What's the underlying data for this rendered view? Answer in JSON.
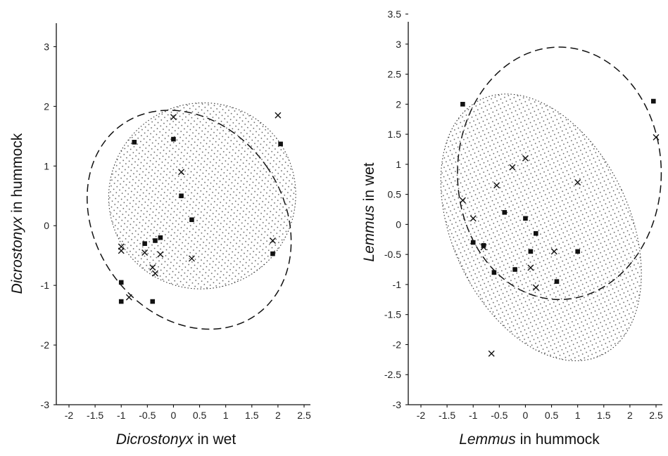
{
  "chart_data": [
    {
      "type": "scatter",
      "title": "",
      "xlabel": {
        "species": "Dicrostonyx",
        "rest": " in wet"
      },
      "ylabel": {
        "species": "Dicrostonyx",
        "rest": " in hummock"
      },
      "xlim": [
        -2,
        2.5
      ],
      "ylim": [
        -3,
        3.5
      ],
      "x_ticks": [
        "-2",
        "-1.5",
        "-1",
        "-0.5",
        "0",
        "0.5",
        "1",
        "1.5",
        "2",
        "2.5"
      ],
      "y_ticks": [
        "-3",
        "-2",
        "-1",
        "0",
        "1",
        "2",
        "3"
      ],
      "grid": false,
      "series": [
        {
          "marker": "square",
          "points": [
            [
              -0.75,
              1.4
            ],
            [
              0.0,
              1.45
            ],
            [
              2.05,
              1.37
            ],
            [
              0.15,
              0.5
            ],
            [
              0.35,
              0.1
            ],
            [
              -0.25,
              -0.2
            ],
            [
              -0.35,
              -0.25
            ],
            [
              -0.55,
              -0.3
            ],
            [
              -1.0,
              -0.95
            ],
            [
              -1.0,
              -1.27
            ],
            [
              -0.4,
              -1.27
            ],
            [
              1.9,
              -0.47
            ]
          ]
        },
        {
          "marker": "cross",
          "points": [
            [
              0.0,
              1.82
            ],
            [
              2.0,
              1.85
            ],
            [
              0.15,
              0.9
            ],
            [
              -1.0,
              -0.35
            ],
            [
              -1.0,
              -0.42
            ],
            [
              -0.55,
              -0.45
            ],
            [
              -0.25,
              -0.48
            ],
            [
              -0.4,
              -0.7
            ],
            [
              -0.35,
              -0.8
            ],
            [
              0.35,
              -0.55
            ],
            [
              -0.85,
              -1.2
            ],
            [
              1.9,
              -0.25
            ]
          ]
        }
      ],
      "ellipses": [
        {
          "style": "dashed",
          "center": [
            0.3,
            0.1
          ],
          "rx": 1.8,
          "ry": 1.95,
          "rotation_deg": -35
        },
        {
          "style": "dotted-shaded",
          "center": [
            0.55,
            0.5
          ],
          "rx": 1.8,
          "ry": 1.55,
          "rotation_deg": -38
        }
      ]
    },
    {
      "type": "scatter",
      "title": "",
      "xlabel": {
        "species": "Lemmus",
        "rest": " in hummock"
      },
      "ylabel": {
        "species": "Lemmus",
        "rest": " in wet"
      },
      "xlim": [
        -2,
        2.5
      ],
      "ylim": [
        -3,
        3.5
      ],
      "x_ticks": [
        "-2",
        "-1.5",
        "-1",
        "-0.5",
        "0",
        "0.5",
        "1",
        "1.5",
        "2",
        "2.5"
      ],
      "y_ticks": [
        "-3",
        "-2.5",
        "-2",
        "-1.5",
        "-1",
        "-0.5",
        "0",
        "0.5",
        "1",
        "1.5",
        "2",
        "2.5",
        "3",
        "3.5"
      ],
      "grid": false,
      "series": [
        {
          "marker": "square",
          "points": [
            [
              -1.2,
              2.0
            ],
            [
              2.45,
              2.05
            ],
            [
              -0.4,
              0.2
            ],
            [
              0.0,
              0.1
            ],
            [
              0.2,
              -0.15
            ],
            [
              -1.0,
              -0.3
            ],
            [
              -0.8,
              -0.35
            ],
            [
              0.1,
              -0.45
            ],
            [
              1.0,
              -0.45
            ],
            [
              -0.2,
              -0.75
            ],
            [
              -0.6,
              -0.8
            ],
            [
              0.6,
              -0.95
            ]
          ]
        },
        {
          "marker": "cross",
          "points": [
            [
              2.5,
              1.45
            ],
            [
              0.0,
              1.1
            ],
            [
              -0.25,
              0.95
            ],
            [
              1.0,
              0.7
            ],
            [
              -0.55,
              0.65
            ],
            [
              -1.2,
              0.4
            ],
            [
              -1.0,
              0.1
            ],
            [
              -0.8,
              -0.38
            ],
            [
              0.55,
              -0.45
            ],
            [
              0.1,
              -0.72
            ],
            [
              0.2,
              -1.05
            ],
            [
              -0.65,
              -2.15
            ]
          ]
        }
      ],
      "ellipses": [
        {
          "style": "dashed",
          "center": [
            0.65,
            0.85
          ],
          "rx": 1.95,
          "ry": 2.1,
          "rotation_deg": 0
        },
        {
          "style": "dotted-shaded",
          "center": [
            0.3,
            -0.05
          ],
          "rx": 1.7,
          "ry": 2.35,
          "rotation_deg": -25
        }
      ]
    }
  ]
}
